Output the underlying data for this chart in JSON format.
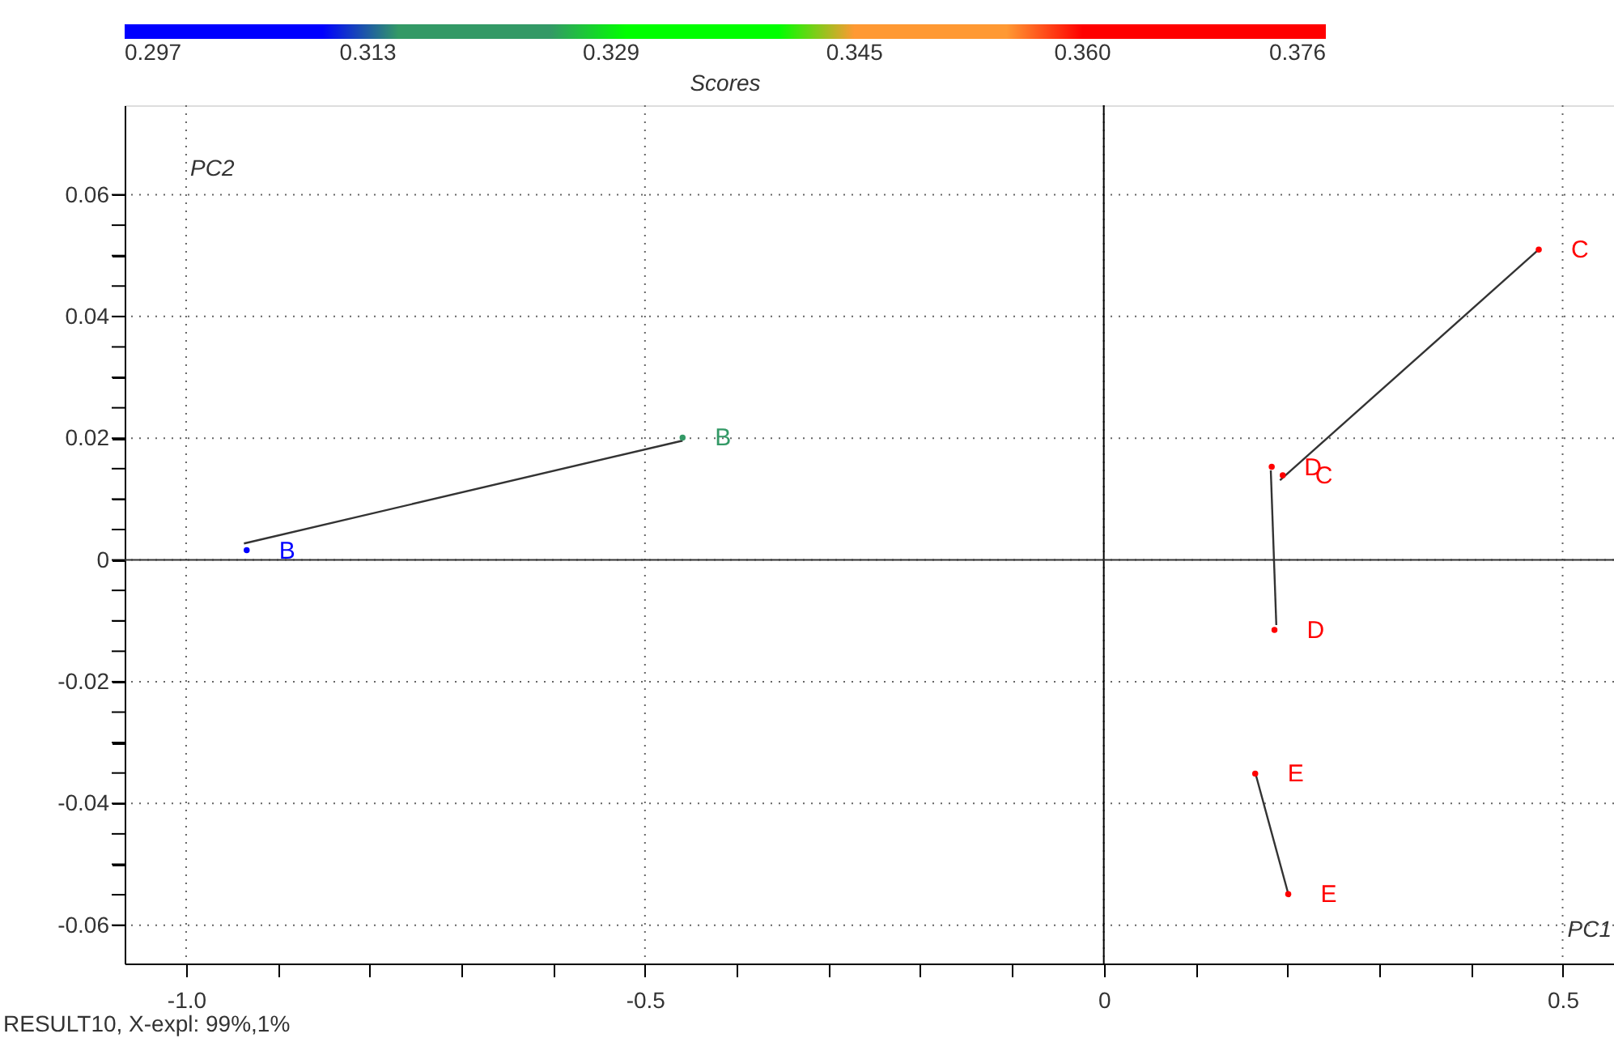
{
  "chart_data": {
    "type": "scatter",
    "xlabel": "PC1",
    "ylabel": "PC2",
    "clabel": "Scores",
    "annotations": [
      "RESULT10, X-expl: 99%,1%"
    ],
    "xlim": [
      -1.067,
      0.556
    ],
    "ylim": [
      -0.0663,
      0.0747
    ],
    "xticks": [
      {
        "value": -1,
        "label": "-1.0"
      },
      {
        "value": -0.9,
        "label": null
      },
      {
        "value": -0.8,
        "label": null
      },
      {
        "value": -0.7,
        "label": null
      },
      {
        "value": -0.6,
        "label": null
      },
      -0.5,
      {
        "value": -0.4,
        "label": null
      },
      {
        "value": -0.3,
        "label": null
      },
      {
        "value": -0.2,
        "label": null
      },
      {
        "value": -0.1,
        "label": null
      },
      0,
      {
        "value": 0.1,
        "label": null
      },
      {
        "value": 0.2,
        "label": null
      },
      {
        "value": 0.3,
        "label": null
      },
      {
        "value": 0.4,
        "label": null
      },
      0.5
    ],
    "yticks": [
      -0.06,
      {
        "value": -0.055,
        "label": null
      },
      {
        "value": -0.05,
        "label": null
      },
      {
        "value": -0.045,
        "label": null
      },
      -0.04,
      {
        "value": -0.035,
        "label": null
      },
      {
        "value": -0.03,
        "label": null
      },
      {
        "value": -0.025,
        "label": null
      },
      -0.02,
      {
        "value": -0.015,
        "label": null
      },
      {
        "value": -0.01,
        "label": null
      },
      {
        "value": -0.005,
        "label": null
      },
      0,
      {
        "value": 0.005,
        "label": null
      },
      {
        "value": 0.01,
        "label": null
      },
      {
        "value": 0.015,
        "label": null
      },
      0.02,
      {
        "value": 0.025,
        "label": null
      },
      {
        "value": 0.03,
        "label": null
      },
      {
        "value": 0.035,
        "label": null
      },
      0.04,
      {
        "value": 0.045,
        "label": null
      },
      {
        "value": 0.05,
        "label": null
      },
      {
        "value": 0.055,
        "label": null
      },
      0.06
    ],
    "clim": [
      0.297,
      0.376
    ],
    "cticks": [
      0.297,
      0.313,
      0.329,
      0.345,
      {
        "value": 0.36,
        "label": "0.360"
      },
      0.376
    ],
    "colors": [
      "#0000ff",
      "#339966",
      "#00ff00",
      "#ff9933",
      "#ff0000"
    ],
    "grid": true,
    "marker": "circle",
    "ref_lines": [
      {
        "axis": "x",
        "value": 0,
        "color": "#000000",
        "line_style": "solid"
      },
      {
        "axis": "y",
        "value": 0,
        "color": "#333333",
        "line_style": "solid"
      }
    ],
    "series": [
      {
        "type": "line",
        "marker": "none",
        "color": "#333333",
        "x": [
          -0.937,
          -0.459
        ],
        "values": [
          0.0027,
          0.0196
        ]
      },
      {
        "type": "line",
        "marker": "none",
        "color": "#333333",
        "x": [
          0.192,
          0.474
        ],
        "values": [
          0.0131,
          0.051
        ]
      },
      {
        "type": "line",
        "marker": "none",
        "color": "#333333",
        "x": [
          0.182,
          0.188
        ],
        "values": [
          0.0147,
          -0.0107
        ]
      },
      {
        "type": "line",
        "marker": "none",
        "color": "#333333",
        "x": [
          0.165,
          0.202
        ],
        "values": [
          -0.0349,
          -0.0554
        ]
      },
      {
        "type": "scatter",
        "colors": [
          "#0000ff",
          "#339966",
          "#ff0000",
          "#ff0000",
          "#ff0000",
          "#ff0000",
          "#ff0000",
          "#ff0000"
        ],
        "x": [
          -0.934,
          -0.459,
          0.474,
          0.195,
          0.183,
          0.186,
          0.165,
          0.201
        ],
        "values": [
          0.0016,
          0.0201,
          0.051,
          0.0139,
          0.0153,
          -0.0115,
          -0.0351,
          -0.0549
        ],
        "value_labels": [
          "B",
          "B",
          "C",
          "C",
          "D",
          "D",
          "E",
          "E"
        ]
      }
    ]
  }
}
